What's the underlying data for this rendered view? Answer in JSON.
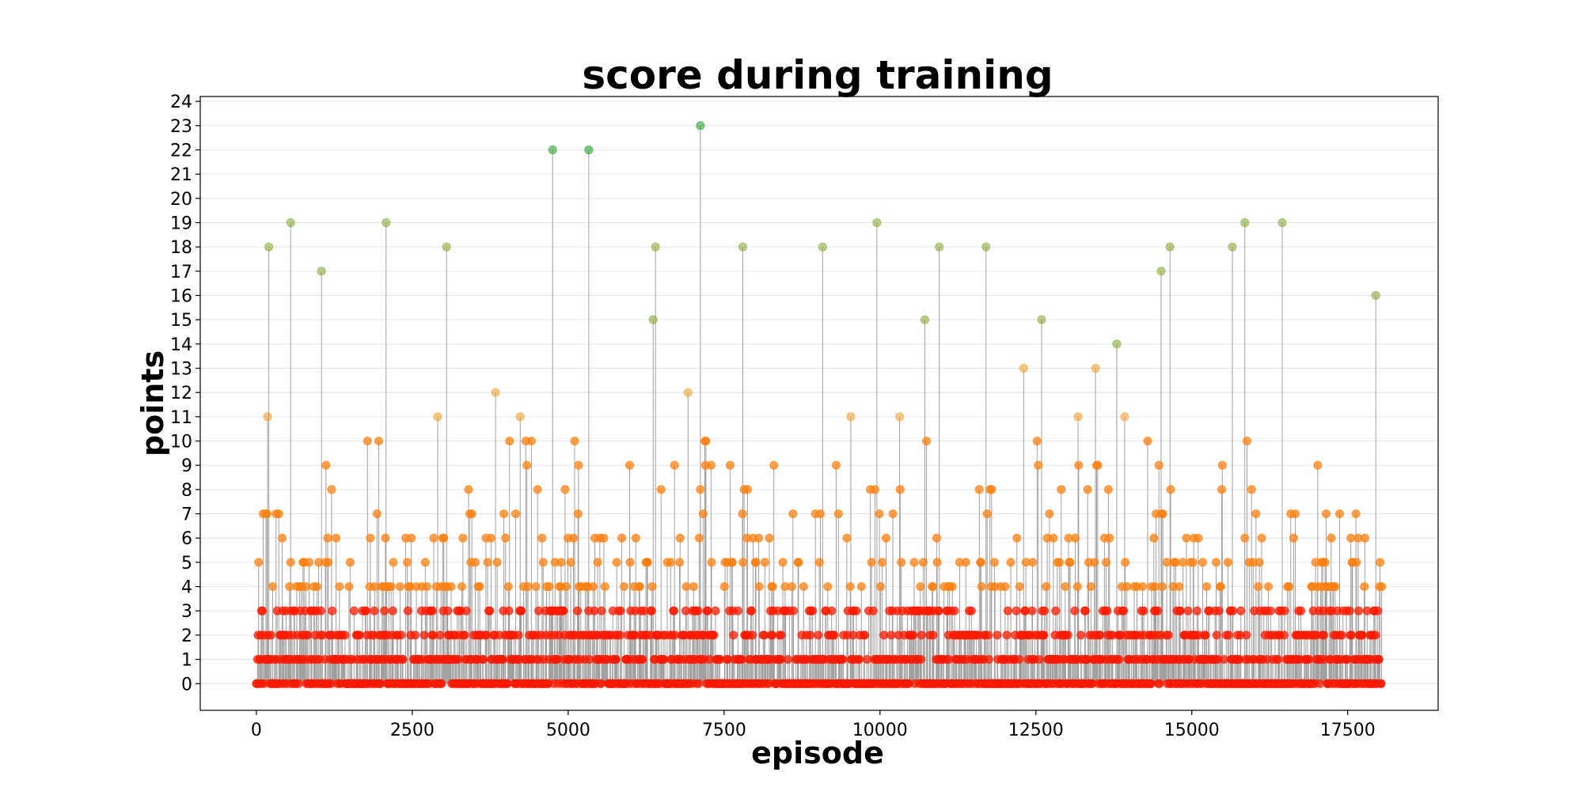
{
  "chart_data": {
    "type": "scatter",
    "title": "score during training",
    "xlabel": "episode",
    "ylabel": "points",
    "xlim": [
      -900,
      18950
    ],
    "ylim": [
      -1.1,
      24.2
    ],
    "xticks": [
      0,
      2500,
      5000,
      7500,
      10000,
      12500,
      15000,
      17500
    ],
    "xtick_labels": [
      "0",
      "2500",
      "5000",
      "7500",
      "10000",
      "12500",
      "15000",
      "17500"
    ],
    "yticks": [
      0,
      1,
      2,
      3,
      4,
      5,
      6,
      7,
      8,
      9,
      10,
      11,
      12,
      13,
      14,
      15,
      16,
      17,
      18,
      19,
      20,
      21,
      22,
      23,
      24
    ],
    "ytick_labels": [
      "0",
      "1",
      "2",
      "3",
      "4",
      "5",
      "6",
      "7",
      "8",
      "9",
      "10",
      "11",
      "12",
      "13",
      "14",
      "15",
      "16",
      "17",
      "18",
      "19",
      "20",
      "21",
      "22",
      "23",
      "24"
    ],
    "grid": "horizontal",
    "episodes_range": [
      0,
      18050
    ],
    "marker_colors": {
      "low": "#ff1a00",
      "mid": "#ff7f0e",
      "high": "#f0a030",
      "top": "#88a838",
      "max": "#2ca02c"
    },
    "stem_color": "#a0a0a0",
    "notable_points": [
      {
        "x": 200,
        "y": 18
      },
      {
        "x": 550,
        "y": 19
      },
      {
        "x": 2080,
        "y": 19
      },
      {
        "x": 3050,
        "y": 18
      },
      {
        "x": 4750,
        "y": 22
      },
      {
        "x": 5330,
        "y": 22
      },
      {
        "x": 6400,
        "y": 18
      },
      {
        "x": 7120,
        "y": 23
      },
      {
        "x": 7800,
        "y": 18
      },
      {
        "x": 9080,
        "y": 18
      },
      {
        "x": 9950,
        "y": 19
      },
      {
        "x": 10950,
        "y": 18
      },
      {
        "x": 11700,
        "y": 18
      },
      {
        "x": 14650,
        "y": 18
      },
      {
        "x": 15650,
        "y": 18
      },
      {
        "x": 15850,
        "y": 19
      },
      {
        "x": 16450,
        "y": 19
      },
      {
        "x": 17950,
        "y": 16
      }
    ]
  }
}
